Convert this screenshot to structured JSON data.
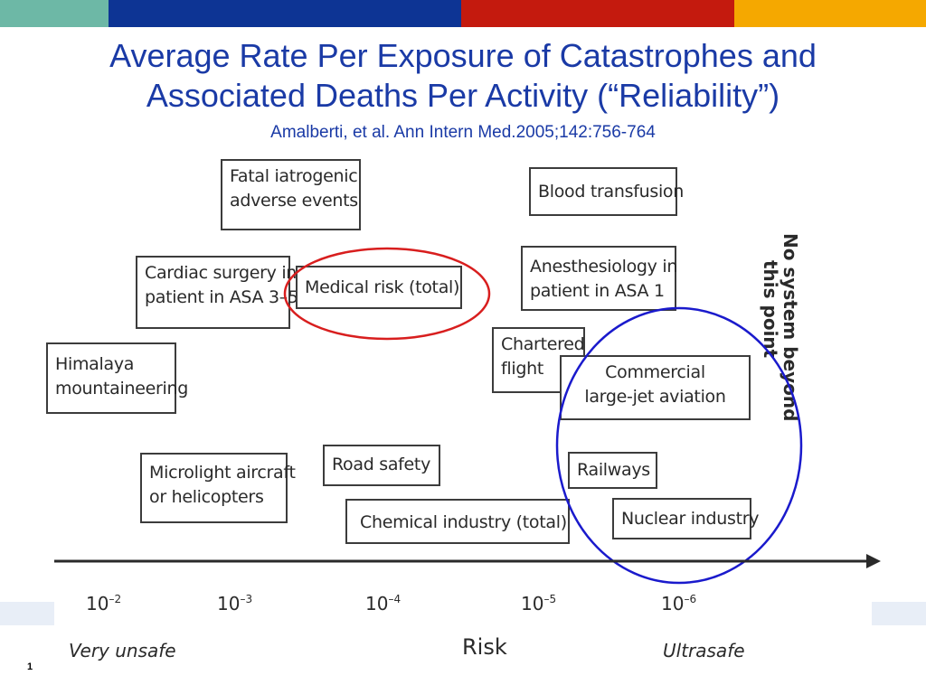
{
  "colors": {
    "bar_teal": "#6db8a6",
    "bar_blue": "#0d3494",
    "bar_red": "#c41a0e",
    "bar_orange": "#f5a800",
    "title": "#1a3aa6",
    "red_ellipse": "#d81e1e",
    "blue_ellipse": "#1a1acc"
  },
  "title": {
    "line1": "Average Rate Per Exposure of Catastrophes and",
    "line2": "Associated Deaths Per Activity (“Reliability”)",
    "citation": "Amalberti, et al. Ann Intern Med.2005;142:756-764"
  },
  "boxes": {
    "fatal_iatrogenic": [
      "Fatal iatrogenic",
      "adverse events"
    ],
    "blood_transfusion": [
      "Blood transfusion"
    ],
    "cardiac_surgery": [
      "Cardiac surgery in",
      "patient in ASA 3–5"
    ],
    "medical_risk": [
      "Medical risk (total)"
    ],
    "anesthesiology": [
      "Anesthesiology in",
      "patient in ASA 1"
    ],
    "himalaya": [
      "Himalaya",
      "mountaineering"
    ],
    "chartered_flight": [
      "Chartered",
      "flight"
    ],
    "commercial_aviation": [
      "Commercial",
      "large-jet aviation"
    ],
    "microlight": [
      "Microlight aircraft",
      "or helicopters"
    ],
    "road_safety": [
      "Road safety"
    ],
    "railways": [
      "Railways"
    ],
    "chemical_industry": [
      "Chemical industry (total)"
    ],
    "nuclear_industry": [
      "Nuclear industry"
    ]
  },
  "limit_note": [
    "No system beyond",
    "this point"
  ],
  "axis": {
    "ticks": [
      {
        "base": "10",
        "exp": "–2"
      },
      {
        "base": "10",
        "exp": "–3"
      },
      {
        "base": "10",
        "exp": "–4"
      },
      {
        "base": "10",
        "exp": "–5"
      },
      {
        "base": "10",
        "exp": "–6"
      }
    ],
    "left_label": "Very unsafe",
    "center_label": "Risk",
    "right_label": "Ultrasafe"
  },
  "page_number": "1"
}
